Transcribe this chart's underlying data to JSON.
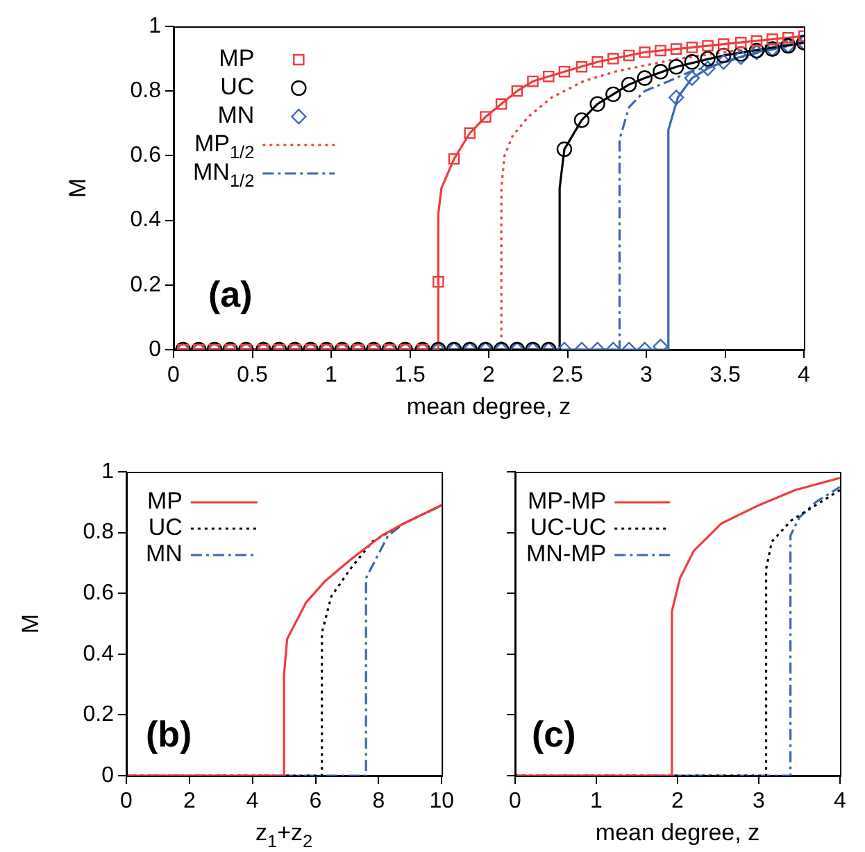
{
  "chart_data": [
    {
      "type": "line",
      "xlabel": "mean degree, z",
      "ylabel": "M",
      "xlim": [
        0,
        4
      ],
      "ylim": [
        0,
        1
      ],
      "xticks": [
        0,
        0.5,
        1,
        1.5,
        2,
        2.5,
        3,
        3.5,
        4
      ],
      "yticks": [
        0,
        0.2,
        0.4,
        0.6,
        0.8,
        1
      ],
      "legend": "top left",
      "grid": false,
      "annotations": [
        "(a)"
      ],
      "x": [
        0.06,
        0.16,
        0.26,
        0.36,
        0.46,
        0.57,
        0.67,
        0.77,
        0.87,
        0.97,
        1.07,
        1.17,
        1.27,
        1.37,
        1.47,
        1.58,
        1.68,
        1.78,
        1.88,
        1.98,
        2.08,
        2.18,
        2.28,
        2.38,
        2.48,
        2.59,
        2.69,
        2.79,
        2.89,
        2.99,
        3.09,
        3.19,
        3.29,
        3.39,
        3.49,
        3.6,
        3.7,
        3.8,
        3.9,
        4.0
      ],
      "series": [
        {
          "name": "MP",
          "type": "scatter",
          "marker": "square",
          "color": "#f03c3c",
          "values": [
            0,
            0,
            0,
            0,
            0,
            0,
            0,
            0,
            0,
            0,
            0,
            0,
            0,
            0,
            0,
            0,
            0.21,
            0.59,
            0.67,
            0.72,
            0.76,
            0.8,
            0.83,
            0.845,
            0.86,
            0.875,
            0.89,
            0.9,
            0.91,
            0.92,
            0.925,
            0.93,
            0.935,
            0.94,
            0.945,
            0.95,
            0.955,
            0.96,
            0.965,
            0.97
          ]
        },
        {
          "name": "UC",
          "type": "scatter",
          "marker": "circle",
          "color": "#000000",
          "values": [
            0,
            0,
            0,
            0,
            0,
            0,
            0,
            0,
            0,
            0,
            0,
            0,
            0,
            0,
            0,
            0,
            0,
            0,
            0,
            0,
            0,
            0,
            0,
            0,
            0.62,
            0.71,
            0.76,
            0.79,
            0.82,
            0.84,
            0.86,
            0.875,
            0.89,
            0.9,
            0.91,
            0.915,
            0.925,
            0.93,
            0.94,
            0.95
          ]
        },
        {
          "name": "MN",
          "type": "scatter",
          "marker": "diamond",
          "color": "#3a68b4",
          "values": [
            0,
            0,
            0,
            0,
            0,
            0,
            0,
            0,
            0,
            0,
            0,
            0,
            0,
            0,
            0,
            0,
            0,
            0,
            0,
            0,
            0,
            0,
            0,
            0,
            0,
            0,
            0,
            0,
            0,
            0,
            0.01,
            0.78,
            0.84,
            0.87,
            0.89,
            0.905,
            0.92,
            0.93,
            0.94,
            0.95
          ]
        },
        {
          "type": "line",
          "line_style": "solid",
          "color": "#f03c3c",
          "x": [
            0,
            1.68,
            1.68,
            1.7,
            1.78,
            1.88,
            1.98,
            2.08,
            2.18,
            2.28,
            2.38,
            2.48,
            2.69,
            2.99,
            3.49,
            4.0
          ],
          "values": [
            0,
            0,
            0.42,
            0.5,
            0.59,
            0.67,
            0.72,
            0.76,
            0.8,
            0.83,
            0.845,
            0.86,
            0.89,
            0.92,
            0.945,
            0.97
          ]
        },
        {
          "type": "line",
          "line_style": "solid",
          "color": "#000000",
          "x": [
            0,
            2.45,
            2.45,
            2.48,
            2.59,
            2.69,
            2.79,
            2.89,
            2.99,
            3.19,
            3.49,
            4.0
          ],
          "values": [
            0,
            0,
            0.5,
            0.62,
            0.71,
            0.76,
            0.79,
            0.82,
            0.84,
            0.875,
            0.91,
            0.95
          ]
        },
        {
          "type": "line",
          "line_style": "solid",
          "color": "#3a68b4",
          "x": [
            0,
            3.14,
            3.14,
            3.2,
            3.29,
            3.39,
            3.49,
            3.7,
            4.0
          ],
          "values": [
            0,
            0,
            0.68,
            0.78,
            0.84,
            0.87,
            0.89,
            0.92,
            0.95
          ]
        },
        {
          "name": "MP$_{1/2}$",
          "type": "line",
          "line_style": "dotted",
          "color": "#f03c3c",
          "x": [
            0,
            2.08,
            2.08,
            2.1,
            2.15,
            2.25,
            2.4,
            2.6,
            2.8,
            3.0,
            3.2,
            3.5,
            4.0
          ],
          "values": [
            0,
            0,
            0.5,
            0.6,
            0.66,
            0.72,
            0.78,
            0.83,
            0.86,
            0.88,
            0.9,
            0.92,
            0.96
          ]
        },
        {
          "name": "MN$_{1/2}$",
          "type": "line",
          "line_style": "dashdot",
          "color": "#3a68b4",
          "x": [
            0,
            2.83,
            2.83,
            2.89,
            2.99,
            3.14,
            3.28,
            3.43,
            3.72,
            4.0
          ],
          "values": [
            0,
            0,
            0.65,
            0.75,
            0.8,
            0.83,
            0.86,
            0.88,
            0.92,
            0.95
          ]
        }
      ]
    },
    {
      "type": "line",
      "xlabel": "z$_{1}$+z$_{2}$",
      "ylabel": "M",
      "xlim": [
        0,
        10
      ],
      "ylim": [
        0,
        1
      ],
      "xticks": [
        0,
        2,
        4,
        6,
        8,
        10
      ],
      "yticks": [
        0,
        0.2,
        0.4,
        0.6,
        0.8,
        1
      ],
      "legend": "top left",
      "grid": false,
      "annotations": [
        "(b)"
      ],
      "series": [
        {
          "name": "MP",
          "line_style": "solid",
          "color": "#f03c3c",
          "x": [
            0,
            5.0,
            5.0,
            5.1,
            5.7,
            6.3,
            7.1,
            8.1,
            8.8,
            10
          ],
          "values": [
            0,
            0,
            0.33,
            0.45,
            0.57,
            0.64,
            0.71,
            0.79,
            0.83,
            0.89
          ]
        },
        {
          "name": "UC",
          "line_style": "dotted",
          "color": "#000000",
          "x": [
            0,
            6.2,
            6.2,
            6.5,
            7.1,
            7.8,
            8.8,
            10
          ],
          "values": [
            0,
            0,
            0.47,
            0.59,
            0.68,
            0.77,
            0.83,
            0.89
          ]
        },
        {
          "name": "MN",
          "line_style": "dashdot",
          "color": "#3a68b4",
          "x": [
            0,
            7.6,
            7.6,
            8.0,
            8.3,
            8.8,
            10
          ],
          "values": [
            0,
            0,
            0.65,
            0.73,
            0.79,
            0.83,
            0.89
          ]
        }
      ]
    },
    {
      "type": "line",
      "xlabel": "mean degree, z",
      "xlim": [
        0,
        4
      ],
      "ylim": [
        0,
        1
      ],
      "xticks": [
        0,
        1,
        2,
        3,
        4
      ],
      "yticks": [
        0,
        0.2,
        0.4,
        0.6,
        0.8,
        1
      ],
      "tick_labels": "x",
      "legend": "top left",
      "grid": false,
      "annotations": [
        "(c)"
      ],
      "series": [
        {
          "name": "MP-MP",
          "line_style": "solid",
          "color": "#f03c3c",
          "x": [
            0,
            1.93,
            1.93,
            2.03,
            2.2,
            2.54,
            3.0,
            3.45,
            4
          ],
          "values": [
            0,
            0,
            0.54,
            0.65,
            0.74,
            0.83,
            0.89,
            0.94,
            0.98
          ]
        },
        {
          "name": "UC-UC",
          "line_style": "dotted",
          "color": "#000000",
          "x": [
            0,
            3.09,
            3.09,
            3.16,
            3.4,
            3.7,
            4
          ],
          "values": [
            0,
            0,
            0.68,
            0.77,
            0.84,
            0.89,
            0.94
          ]
        },
        {
          "name": "MN-MP",
          "line_style": "dashdot",
          "color": "#3a68b4",
          "x": [
            0,
            3.39,
            3.39,
            3.5,
            3.7,
            4
          ],
          "values": [
            0,
            0,
            0.79,
            0.85,
            0.9,
            0.95
          ]
        }
      ]
    }
  ]
}
